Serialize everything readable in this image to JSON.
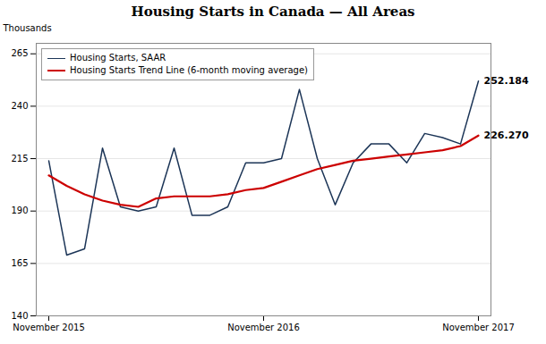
{
  "chart_data": {
    "type": "line",
    "title": "Housing Starts in Canada — All Areas",
    "ylabel": "Thousands",
    "categories": [
      "November 2015",
      null,
      null,
      null,
      null,
      null,
      null,
      null,
      null,
      null,
      null,
      null,
      "November 2016",
      null,
      null,
      null,
      null,
      null,
      null,
      null,
      null,
      null,
      null,
      null,
      "November 2017"
    ],
    "series": [
      {
        "name": "Housing Starts, SAAR",
        "color": "#1c3557",
        "values": [
          214,
          169,
          172,
          220,
          192,
          190,
          192,
          220,
          188,
          188,
          192,
          213,
          213,
          215,
          248,
          215,
          193,
          213,
          222,
          222,
          213,
          227,
          225,
          222,
          252
        ]
      },
      {
        "name": "Housing Starts Trend Line (6-month moving average)",
        "color": "#cc0000",
        "values": [
          207,
          202,
          198,
          195,
          193,
          192,
          196,
          197,
          197,
          197,
          198,
          200,
          201,
          204,
          207,
          210,
          212,
          214,
          215,
          216,
          217,
          218,
          219,
          221,
          226
        ]
      }
    ],
    "annotations": [
      {
        "text": "252.184",
        "series": "Housing Starts, SAAR"
      },
      {
        "text": "226.270",
        "series": "Housing Starts Trend Line (6-month moving average)"
      }
    ],
    "ylim": [
      140,
      270
    ],
    "yticks": [
      140,
      165,
      190,
      215,
      240,
      265
    ],
    "grid": true,
    "legend": "upper left"
  }
}
